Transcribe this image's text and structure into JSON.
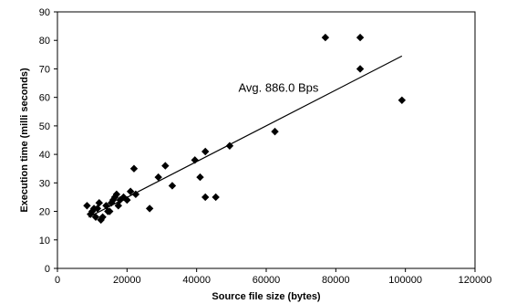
{
  "chart_data": {
    "type": "scatter",
    "xlabel": "Source file size (bytes)",
    "ylabel": "Execution time (milli seconds)",
    "xlim": [
      0,
      120000
    ],
    "ylim": [
      0,
      90
    ],
    "xticks": [
      0,
      20000,
      40000,
      60000,
      80000,
      100000,
      120000
    ],
    "yticks": [
      0,
      10,
      20,
      30,
      40,
      50,
      60,
      70,
      80,
      90
    ],
    "xtick_labels": [
      "0",
      "20000",
      "40000",
      "60000",
      "80000",
      "100000",
      "120000"
    ],
    "ytick_labels": [
      "0",
      "10",
      "20",
      "30",
      "40",
      "50",
      "60",
      "70",
      "80",
      "90"
    ],
    "grid": false,
    "legend": "none",
    "marker_color": "#000000",
    "trendline": {
      "x": [
        9000,
        99000
      ],
      "y": [
        18,
        74.5
      ],
      "color": "#000000",
      "label": "Avg. 886.0 Bps",
      "label_at": [
        52000,
        62
      ]
    },
    "points": [
      {
        "x": 8500,
        "y": 22
      },
      {
        "x": 9500,
        "y": 19
      },
      {
        "x": 10000,
        "y": 20
      },
      {
        "x": 10500,
        "y": 21
      },
      {
        "x": 11000,
        "y": 18
      },
      {
        "x": 11500,
        "y": 21
      },
      {
        "x": 12000,
        "y": 23
      },
      {
        "x": 12500,
        "y": 17
      },
      {
        "x": 13000,
        "y": 18
      },
      {
        "x": 14000,
        "y": 22
      },
      {
        "x": 14500,
        "y": 20
      },
      {
        "x": 15000,
        "y": 20
      },
      {
        "x": 15500,
        "y": 23
      },
      {
        "x": 16000,
        "y": 24
      },
      {
        "x": 16500,
        "y": 25
      },
      {
        "x": 17000,
        "y": 26
      },
      {
        "x": 17500,
        "y": 22
      },
      {
        "x": 18000,
        "y": 24
      },
      {
        "x": 19000,
        "y": 25
      },
      {
        "x": 20000,
        "y": 24
      },
      {
        "x": 21000,
        "y": 27
      },
      {
        "x": 22000,
        "y": 35
      },
      {
        "x": 22500,
        "y": 26
      },
      {
        "x": 26500,
        "y": 21
      },
      {
        "x": 29000,
        "y": 32
      },
      {
        "x": 31000,
        "y": 36
      },
      {
        "x": 33000,
        "y": 29
      },
      {
        "x": 39500,
        "y": 38
      },
      {
        "x": 41000,
        "y": 32
      },
      {
        "x": 42500,
        "y": 41
      },
      {
        "x": 42500,
        "y": 25
      },
      {
        "x": 45500,
        "y": 25
      },
      {
        "x": 49500,
        "y": 43
      },
      {
        "x": 62500,
        "y": 48
      },
      {
        "x": 77000,
        "y": 81
      },
      {
        "x": 87000,
        "y": 81
      },
      {
        "x": 87000,
        "y": 70
      },
      {
        "x": 99000,
        "y": 59
      }
    ]
  }
}
